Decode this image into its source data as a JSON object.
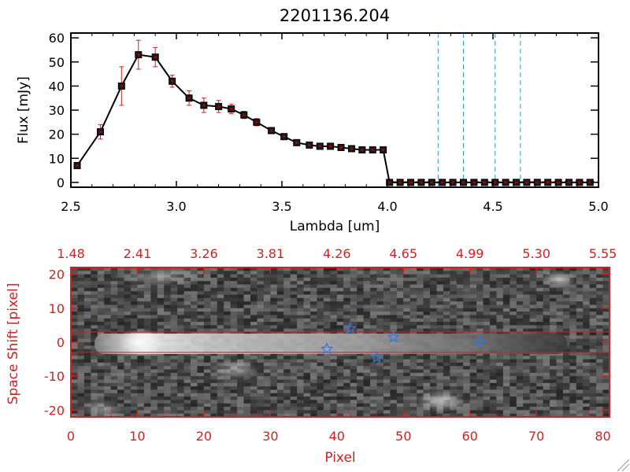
{
  "chart_data": [
    {
      "type": "line",
      "title": "2201136.204",
      "xlabel": "Lambda [um]",
      "ylabel": "Flux [mJy]",
      "xlim": [
        2.5,
        5.0
      ],
      "ylim": [
        -2,
        62
      ],
      "x_ticks": [
        "2.5",
        "3.0",
        "3.5",
        "4.0",
        "4.5",
        "5.0"
      ],
      "y_ticks": [
        "0",
        "10",
        "20",
        "30",
        "40",
        "50",
        "60"
      ],
      "x_tick_values": [
        2.5,
        3.0,
        3.5,
        4.0,
        4.5,
        5.0
      ],
      "y_tick_values": [
        0,
        10,
        20,
        30,
        40,
        50,
        60
      ],
      "series": [
        {
          "x": [
            2.53,
            2.64,
            2.74,
            2.82,
            2.9,
            2.98,
            3.06,
            3.13,
            3.2,
            3.26,
            3.32,
            3.38,
            3.45,
            3.51,
            3.57,
            3.63,
            3.68,
            3.73,
            3.78,
            3.83,
            3.88,
            3.93,
            3.98,
            4.01,
            4.06,
            4.11,
            4.16,
            4.21,
            4.26,
            4.31,
            4.36,
            4.41,
            4.46,
            4.51,
            4.56,
            4.61,
            4.66,
            4.71,
            4.76,
            4.81,
            4.86,
            4.91,
            4.96
          ],
          "y": [
            7,
            21,
            40,
            53,
            52,
            42,
            35,
            32,
            31.5,
            30.5,
            28,
            25,
            21.5,
            19,
            16.5,
            15.5,
            15,
            15,
            14.5,
            14,
            13.5,
            13.5,
            13.5,
            0,
            0,
            0,
            0,
            0,
            0,
            0,
            0,
            0,
            0,
            0,
            0,
            0,
            0,
            0,
            0,
            0,
            0,
            0,
            0
          ],
          "err": [
            1,
            3,
            8,
            6,
            4,
            2.5,
            3,
            3,
            2.5,
            2,
            1.5,
            1.5,
            1,
            1,
            0.8,
            0.8,
            0.8,
            0.8,
            0.8,
            0.8,
            0.8,
            0.8,
            0.8,
            0,
            0,
            0,
            0,
            0,
            0,
            0,
            0,
            0,
            0,
            0,
            0,
            0,
            0,
            0,
            0,
            0,
            0,
            0,
            0
          ]
        }
      ],
      "vlines": [
        4.24,
        4.36,
        4.51,
        4.63
      ],
      "colors": {
        "line": "#000000",
        "marker": "#a00000",
        "error": "#cc2222",
        "vline": "#3399cc",
        "zero_line": "#dd3333"
      }
    },
    {
      "type": "heatmap",
      "xlabel": "Pixel",
      "ylabel": "Space Shift [pixel]",
      "xlim": [
        0,
        81
      ],
      "ylim": [
        -22,
        22
      ],
      "x_ticks": [
        "0",
        "10",
        "20",
        "30",
        "40",
        "50",
        "60",
        "70",
        "80"
      ],
      "x_tick_values": [
        0,
        10,
        20,
        30,
        40,
        50,
        60,
        70,
        80
      ],
      "y_ticks": [
        "20",
        "10",
        "0",
        "-10",
        "-20"
      ],
      "y_tick_values": [
        20,
        10,
        0,
        -10,
        -20
      ],
      "top_ticks": [
        "1.48",
        "2.41",
        "3.26",
        "3.81",
        "4.26",
        "4.65",
        "4.99",
        "5.30",
        "5.55"
      ],
      "top_tick_values": [
        0,
        10,
        20,
        30,
        40,
        50,
        60,
        70,
        80
      ],
      "hlines": [
        3,
        -3
      ],
      "stars": [
        {
          "x": 38.5,
          "y": -2
        },
        {
          "x": 42,
          "y": 4
        },
        {
          "x": 46,
          "y": -4.5
        },
        {
          "x": 48.5,
          "y": 1.5
        },
        {
          "x": 61.5,
          "y": 0.2
        }
      ],
      "colors": {
        "axis": "#cc2222",
        "star": "#3377dd",
        "hline": "#cc2222"
      }
    }
  ]
}
